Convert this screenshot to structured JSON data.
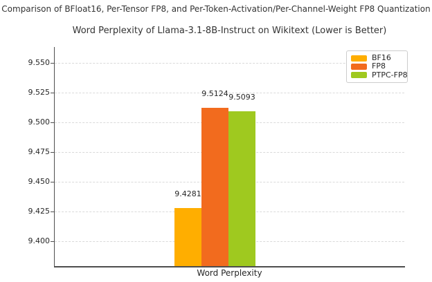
{
  "figure_title": "Comparison of BFloat16, Per-Tensor FP8, and Per-Token-Activation/Per-Channel-Weight FP8 Quantization",
  "chart_data": {
    "type": "bar",
    "title": "Word Perplexity of Llama-3.1-8B-Instruct on Wikitext (Lower is Better)",
    "xlabel": "Word Perplexity",
    "ylabel": "",
    "categories": [
      "Word Perplexity"
    ],
    "series": [
      {
        "name": "BF16",
        "values": [
          9.4281
        ],
        "label": "9.4281",
        "color": "#FFAE00"
      },
      {
        "name": "FP8",
        "values": [
          9.5124
        ],
        "label": "9.5124",
        "color": "#F26B1E"
      },
      {
        "name": "PTPC-FP8",
        "values": [
          9.5093
        ],
        "label": "9.5093",
        "color": "#9FC91F"
      }
    ],
    "ylim": [
      9.3791,
      9.5634
    ],
    "yticks": [
      9.4,
      9.425,
      9.45,
      9.475,
      9.5,
      9.525,
      9.55
    ],
    "ytick_labels": [
      "9.400",
      "9.425",
      "9.450",
      "9.475",
      "9.500",
      "9.525",
      "9.550"
    ],
    "grid": true,
    "grid_style": "dashed",
    "legend_position": "upper right",
    "colors": {
      "grid": "#d9d9d9",
      "spine": "#4d4d4d",
      "tick_text": "#262626",
      "title_text": "#333333",
      "legend_border": "#cccccc",
      "background": "#ffffff"
    }
  }
}
